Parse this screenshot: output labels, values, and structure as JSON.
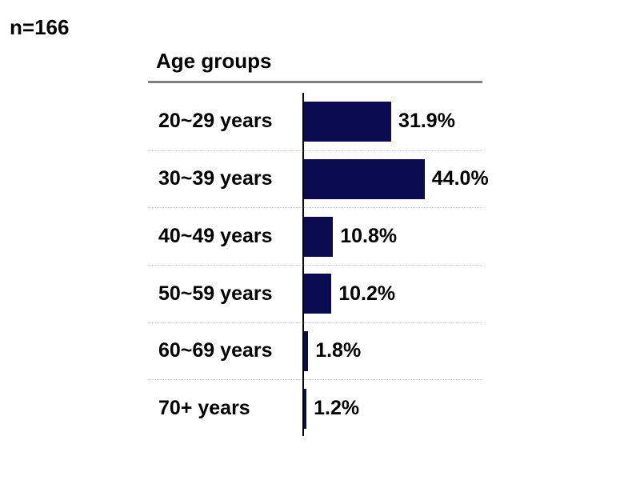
{
  "page": {
    "sample_size": "n=166"
  },
  "chart_data": {
    "type": "bar",
    "orientation": "horizontal",
    "title": "Age groups",
    "categories": [
      "20~29 years",
      "30~39 years",
      "40~49 years",
      "50~59 years",
      "60~69 years",
      "70+ years"
    ],
    "values": [
      31.9,
      44.0,
      10.8,
      10.2,
      1.8,
      1.2
    ],
    "value_labels": [
      "31.9%",
      "44.0%",
      "10.8%",
      "10.2%",
      "1.8%",
      "1.2%"
    ],
    "xlabel": "",
    "ylabel": "",
    "xlim": [
      0,
      50
    ],
    "legend": "none",
    "grid": "dotted horizontal separators between category rows",
    "bar_color": "#0A0A50",
    "axis_line_color": "#000000",
    "gridline_color": "#C8C8C8",
    "title_rule_color": "#808080",
    "text_color": "#000000",
    "background_color": "#FFFFFF"
  }
}
